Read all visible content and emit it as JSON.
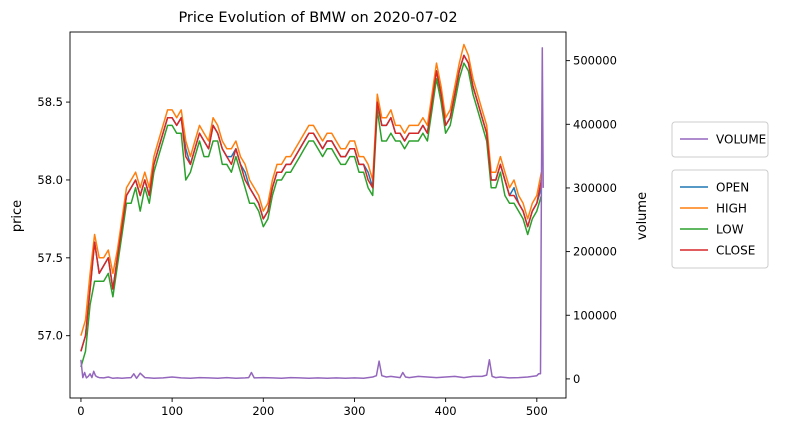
{
  "chart_data": {
    "type": "line",
    "title": "Price Evolution of BMW on 2020-07-02",
    "xlabel": "",
    "ylabel": "price",
    "y2label": "volume",
    "xlim": [
      -12,
      532
    ],
    "ylim": [
      56.6,
      58.95
    ],
    "y2lim": [
      -30000,
      545000
    ],
    "x_ticks": [
      0,
      100,
      200,
      300,
      400,
      500
    ],
    "y_ticks": [
      57.0,
      57.5,
      58.0,
      58.5
    ],
    "y_tick_labels": [
      "57.0",
      "57.5",
      "58.0",
      "58.5"
    ],
    "y2_ticks": [
      0,
      100000,
      200000,
      300000,
      400000,
      500000
    ],
    "x": [
      0,
      5,
      10,
      15,
      20,
      25,
      30,
      35,
      40,
      45,
      50,
      55,
      60,
      65,
      70,
      75,
      80,
      85,
      90,
      95,
      100,
      105,
      110,
      115,
      120,
      125,
      130,
      135,
      140,
      145,
      150,
      155,
      160,
      165,
      170,
      175,
      180,
      185,
      190,
      195,
      200,
      205,
      210,
      215,
      220,
      225,
      230,
      235,
      240,
      245,
      250,
      255,
      260,
      265,
      270,
      275,
      280,
      285,
      290,
      295,
      300,
      305,
      310,
      315,
      320,
      325,
      330,
      335,
      340,
      345,
      350,
      355,
      360,
      365,
      370,
      375,
      380,
      385,
      390,
      395,
      400,
      405,
      410,
      415,
      420,
      425,
      430,
      435,
      440,
      445,
      450,
      455,
      460,
      465,
      470,
      475,
      480,
      485,
      490,
      495,
      500,
      505
    ],
    "series": [
      {
        "name": "OPEN",
        "color": "#1f77b4",
        "values": [
          56.9,
          57.0,
          57.3,
          57.6,
          57.4,
          57.45,
          57.5,
          57.3,
          57.5,
          57.7,
          57.9,
          57.95,
          58.0,
          57.9,
          58.0,
          57.9,
          58.1,
          58.2,
          58.3,
          58.4,
          58.4,
          58.35,
          58.4,
          58.2,
          58.1,
          58.2,
          58.3,
          58.25,
          58.2,
          58.35,
          58.3,
          58.2,
          58.15,
          58.15,
          58.2,
          58.1,
          58.05,
          57.95,
          57.9,
          57.85,
          57.75,
          57.8,
          57.95,
          58.05,
          58.05,
          58.1,
          58.1,
          58.15,
          58.2,
          58.25,
          58.3,
          58.3,
          58.25,
          58.2,
          58.25,
          58.25,
          58.2,
          58.15,
          58.15,
          58.2,
          58.2,
          58.1,
          58.1,
          58.05,
          57.95,
          58.5,
          58.35,
          58.35,
          58.4,
          58.3,
          58.3,
          58.25,
          58.3,
          58.3,
          58.3,
          58.35,
          58.3,
          58.5,
          58.7,
          58.55,
          58.35,
          58.4,
          58.55,
          58.7,
          58.8,
          58.75,
          58.6,
          58.5,
          58.4,
          58.3,
          58.0,
          58.0,
          58.1,
          58.0,
          57.9,
          57.95,
          57.85,
          57.8,
          57.7,
          57.8,
          57.85,
          57.95
        ]
      },
      {
        "name": "HIGH",
        "color": "#ff7f0e",
        "values": [
          57.0,
          57.1,
          57.4,
          57.65,
          57.5,
          57.5,
          57.55,
          57.4,
          57.55,
          57.75,
          57.95,
          58.0,
          58.05,
          57.95,
          58.05,
          57.95,
          58.15,
          58.25,
          58.35,
          58.45,
          58.45,
          58.4,
          58.45,
          58.25,
          58.15,
          58.25,
          58.35,
          58.3,
          58.25,
          58.4,
          58.35,
          58.25,
          58.2,
          58.2,
          58.25,
          58.15,
          58.1,
          58.0,
          57.95,
          57.9,
          57.8,
          57.85,
          58.0,
          58.1,
          58.1,
          58.15,
          58.15,
          58.2,
          58.25,
          58.3,
          58.35,
          58.35,
          58.3,
          58.25,
          58.3,
          58.3,
          58.25,
          58.2,
          58.2,
          58.25,
          58.25,
          58.15,
          58.15,
          58.1,
          58.0,
          58.55,
          58.4,
          58.4,
          58.45,
          58.35,
          58.35,
          58.3,
          58.35,
          58.35,
          58.35,
          58.4,
          58.35,
          58.55,
          58.75,
          58.6,
          58.4,
          58.45,
          58.6,
          58.75,
          58.87,
          58.8,
          58.65,
          58.55,
          58.45,
          58.35,
          58.05,
          58.05,
          58.15,
          58.05,
          57.95,
          58.0,
          57.9,
          57.85,
          57.75,
          57.85,
          57.9,
          58.05
        ]
      },
      {
        "name": "LOW",
        "color": "#2ca02c",
        "values": [
          56.8,
          56.9,
          57.2,
          57.35,
          57.35,
          57.35,
          57.4,
          57.25,
          57.45,
          57.65,
          57.85,
          57.85,
          57.95,
          57.8,
          57.95,
          57.85,
          58.05,
          58.15,
          58.25,
          58.35,
          58.35,
          58.3,
          58.3,
          58.0,
          58.05,
          58.15,
          58.25,
          58.15,
          58.15,
          58.25,
          58.25,
          58.1,
          58.1,
          58.05,
          58.15,
          58.05,
          57.95,
          57.85,
          57.85,
          57.8,
          57.7,
          57.75,
          57.9,
          58.0,
          58.0,
          58.05,
          58.05,
          58.1,
          58.15,
          58.2,
          58.25,
          58.25,
          58.2,
          58.15,
          58.2,
          58.2,
          58.15,
          58.1,
          58.1,
          58.15,
          58.15,
          58.05,
          58.05,
          57.95,
          57.9,
          58.45,
          58.25,
          58.25,
          58.3,
          58.25,
          58.25,
          58.2,
          58.25,
          58.25,
          58.25,
          58.3,
          58.25,
          58.45,
          58.65,
          58.5,
          58.3,
          58.35,
          58.5,
          58.65,
          58.75,
          58.7,
          58.55,
          58.45,
          58.35,
          58.25,
          57.95,
          57.95,
          58.05,
          57.9,
          57.85,
          57.85,
          57.8,
          57.75,
          57.65,
          57.75,
          57.8,
          57.9
        ]
      },
      {
        "name": "CLOSE",
        "color": "#d62728",
        "values": [
          56.9,
          57.0,
          57.3,
          57.6,
          57.4,
          57.45,
          57.5,
          57.3,
          57.5,
          57.7,
          57.9,
          57.95,
          58.0,
          57.9,
          58.0,
          57.9,
          58.1,
          58.2,
          58.3,
          58.4,
          58.4,
          58.35,
          58.4,
          58.15,
          58.1,
          58.2,
          58.3,
          58.25,
          58.2,
          58.35,
          58.3,
          58.2,
          58.15,
          58.1,
          58.2,
          58.1,
          58.0,
          57.95,
          57.9,
          57.85,
          57.75,
          57.8,
          57.95,
          58.05,
          58.05,
          58.1,
          58.1,
          58.15,
          58.2,
          58.25,
          58.3,
          58.3,
          58.25,
          58.2,
          58.25,
          58.25,
          58.2,
          58.15,
          58.15,
          58.2,
          58.2,
          58.1,
          58.1,
          58.0,
          57.95,
          58.5,
          58.35,
          58.35,
          58.4,
          58.3,
          58.3,
          58.25,
          58.3,
          58.3,
          58.3,
          58.35,
          58.3,
          58.5,
          58.7,
          58.55,
          58.35,
          58.4,
          58.55,
          58.7,
          58.8,
          58.75,
          58.6,
          58.5,
          58.4,
          58.3,
          58.0,
          58.0,
          58.1,
          58.0,
          57.9,
          57.9,
          57.85,
          57.8,
          57.7,
          57.8,
          57.85,
          58.0
        ]
      }
    ],
    "volume_series": {
      "name": "VOLUME",
      "color": "#9467bd",
      "x": [
        0,
        2,
        4,
        6,
        8,
        10,
        12,
        14,
        16,
        18,
        20,
        25,
        30,
        35,
        40,
        45,
        50,
        55,
        58,
        61,
        65,
        70,
        75,
        80,
        90,
        100,
        110,
        120,
        130,
        140,
        150,
        160,
        170,
        180,
        184,
        187,
        190,
        200,
        210,
        220,
        230,
        240,
        250,
        260,
        270,
        280,
        290,
        300,
        310,
        320,
        324,
        327,
        330,
        335,
        340,
        345,
        350,
        353,
        356,
        360,
        370,
        380,
        390,
        400,
        410,
        420,
        430,
        440,
        445,
        448,
        451,
        455,
        460,
        470,
        480,
        490,
        500,
        502,
        504,
        505,
        506,
        507
      ],
      "values": [
        30000,
        2000,
        10000,
        1500,
        4000,
        8000,
        2000,
        12000,
        5000,
        3000,
        2000,
        1500,
        3000,
        1000,
        1500,
        1000,
        1500,
        2000,
        8000,
        1000,
        9000,
        2000,
        1500,
        1000,
        1500,
        3000,
        1500,
        1000,
        2000,
        1500,
        1000,
        2000,
        1000,
        1500,
        2000,
        10000,
        1500,
        2000,
        1500,
        1000,
        2000,
        1500,
        1000,
        1500,
        1000,
        1500,
        1000,
        1500,
        1000,
        3000,
        5000,
        28000,
        5000,
        3000,
        4000,
        3000,
        2000,
        10000,
        3000,
        2000,
        4000,
        3000,
        2000,
        3000,
        4000,
        2000,
        4000,
        4000,
        6000,
        30000,
        4000,
        2000,
        3000,
        1500,
        2000,
        3000,
        5000,
        8000,
        8000,
        300000,
        520000,
        300000
      ]
    },
    "legend_volume": [
      "VOLUME"
    ],
    "legend_price": [
      "OPEN",
      "HIGH",
      "LOW",
      "CLOSE"
    ],
    "legend_placement": "outside-right",
    "grid": false
  }
}
